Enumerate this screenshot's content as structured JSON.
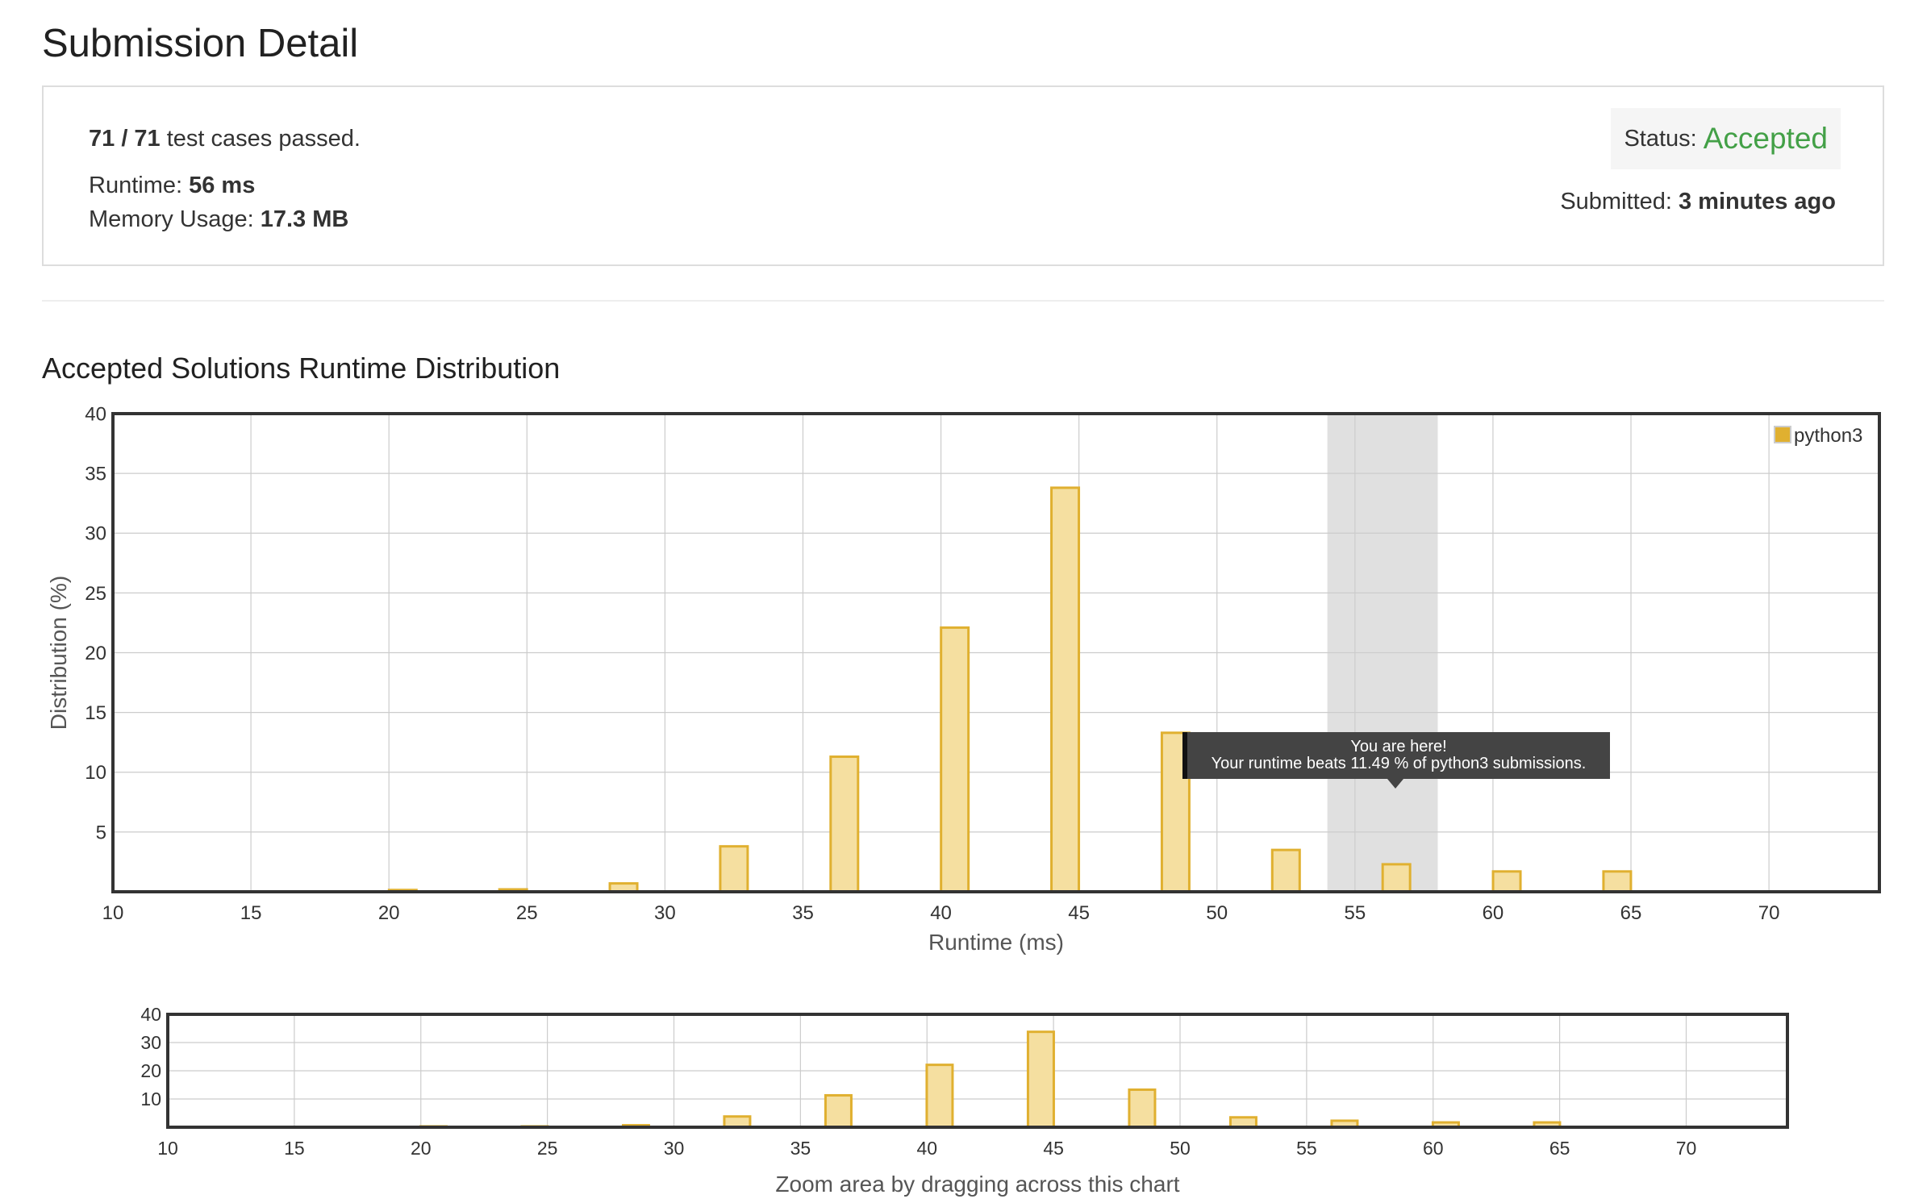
{
  "page": {
    "title": "Submission Detail"
  },
  "summary": {
    "tests_passed_value": "71 / 71",
    "tests_passed_suffix": " test cases passed.",
    "runtime_label": "Runtime: ",
    "runtime_value": "56 ms",
    "memory_label": "Memory Usage: ",
    "memory_value": "17.3 MB",
    "status_label": "Status:",
    "status_value": "Accepted",
    "submitted_label": "Submitted: ",
    "submitted_value": "3 minutes ago"
  },
  "section": {
    "title": "Accepted Solutions Runtime Distribution"
  },
  "tooltip": {
    "line1": "You are here!",
    "line2": "Your runtime beats 11.49 % of python3 submissions."
  },
  "colors": {
    "bar_fill": "#f5dfa0",
    "bar_stroke": "#e0b030",
    "legend_swatch": "#e0b030",
    "status_accepted": "#43a047",
    "highlight_band": "#e0e0e0"
  },
  "chart_data": [
    {
      "type": "bar",
      "title": "",
      "xlabel": "Runtime (ms)",
      "ylabel": "Distribution (%)",
      "xlim": [
        10,
        74
      ],
      "ylim": [
        0,
        40
      ],
      "x_ticks": [
        10,
        15,
        20,
        25,
        30,
        35,
        40,
        45,
        50,
        55,
        60,
        65,
        70
      ],
      "y_ticks": [
        5,
        10,
        15,
        20,
        25,
        30,
        35,
        40
      ],
      "grid": true,
      "legend": "top-right",
      "highlight_range": [
        54,
        58
      ],
      "series": [
        {
          "name": "python3",
          "x": [
            20.5,
            24.5,
            28.5,
            32.5,
            36.5,
            40.5,
            44.5,
            48.5,
            52.5,
            56.5,
            60.5,
            64.5
          ],
          "values": [
            0.15,
            0.2,
            0.7,
            3.8,
            11.3,
            22.1,
            33.8,
            13.3,
            3.5,
            2.3,
            1.7,
            1.7
          ]
        }
      ]
    },
    {
      "type": "bar",
      "title": "",
      "xlabel": "Zoom area by dragging across this chart",
      "ylabel": "",
      "xlim": [
        10,
        74
      ],
      "ylim": [
        0,
        40
      ],
      "x_ticks": [
        10,
        15,
        20,
        25,
        30,
        35,
        40,
        45,
        50,
        55,
        60,
        65,
        70
      ],
      "y_ticks": [
        10,
        20,
        30,
        40
      ],
      "grid": true,
      "series": [
        {
          "name": "python3",
          "x": [
            20.5,
            24.5,
            28.5,
            32.5,
            36.5,
            40.5,
            44.5,
            48.5,
            52.5,
            56.5,
            60.5,
            64.5
          ],
          "values": [
            0.15,
            0.2,
            0.7,
            3.8,
            11.3,
            22.1,
            33.8,
            13.3,
            3.5,
            2.3,
            1.7,
            1.7
          ]
        }
      ]
    }
  ]
}
